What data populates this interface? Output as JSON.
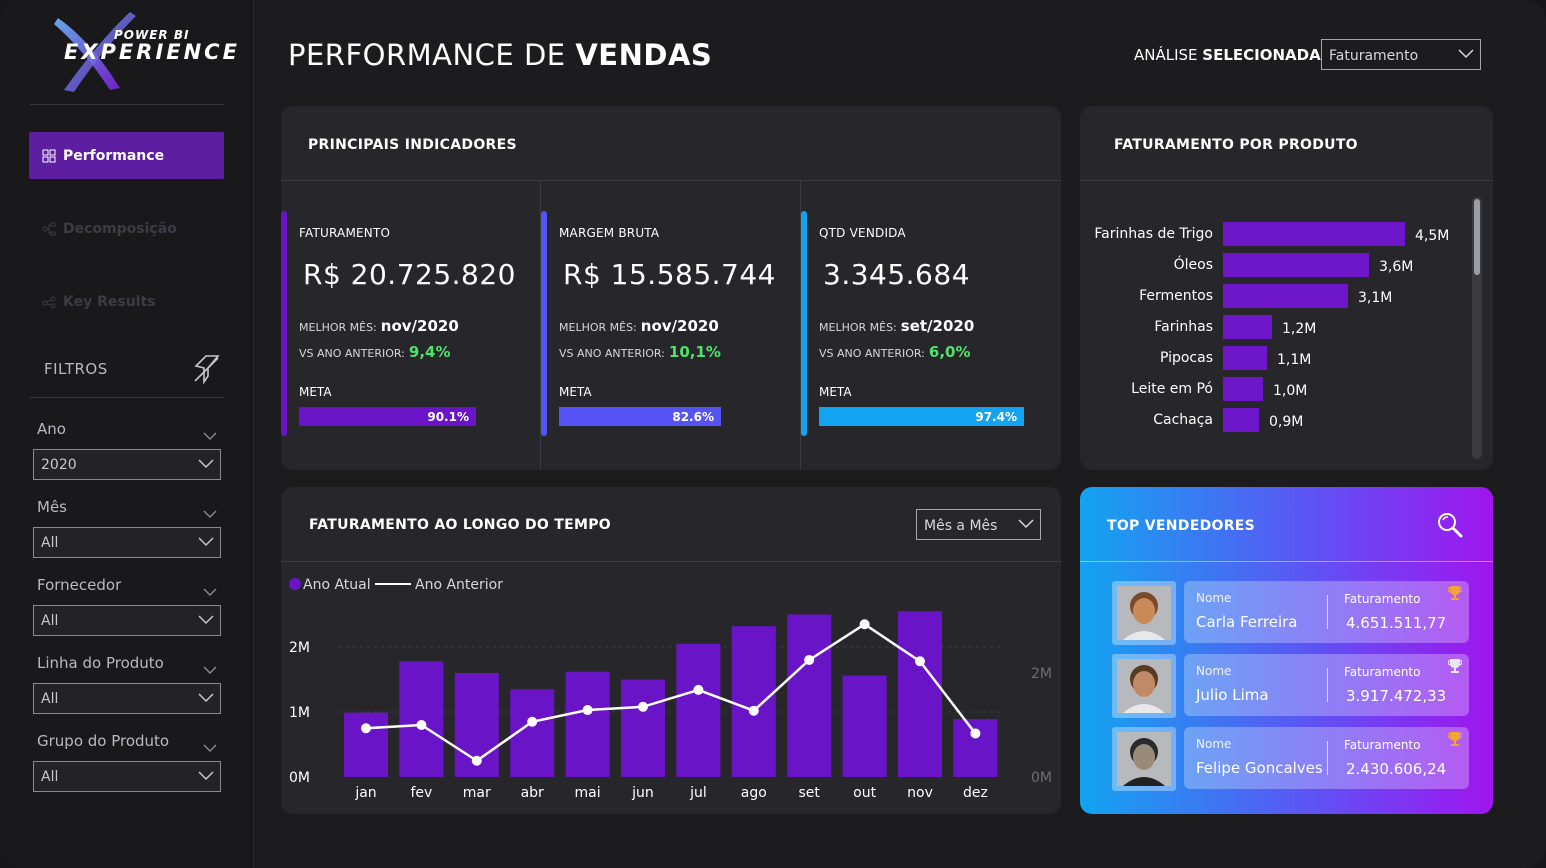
{
  "app": {
    "logo_top": "POWER BI",
    "logo_bottom": "EXPERIENCE",
    "title_regular": "PERFORMANCE DE ",
    "title_bold": "VENDAS"
  },
  "sidebar": {
    "nav": [
      {
        "label": "Performance",
        "active": true
      },
      {
        "label": "Decomposição",
        "active": false
      },
      {
        "label": "Key Results",
        "active": false
      }
    ],
    "filters_title": "FILTROS",
    "filters": [
      {
        "label": "Ano",
        "value": "2020"
      },
      {
        "label": "Mês",
        "value": "All"
      },
      {
        "label": "Fornecedor",
        "value": "All"
      },
      {
        "label": "Linha do Produto",
        "value": "All"
      },
      {
        "label": "Grupo do Produto",
        "value": "All"
      }
    ]
  },
  "analysis": {
    "label_regular": "ANÁLISE ",
    "label_bold": "SELECIONADA:",
    "value": "Faturamento"
  },
  "kpis": {
    "title": "PRINCIPAIS INDICADORES",
    "best_label": "MELHOR MÊS:",
    "vs_label": "VS ANO ANTERIOR:",
    "meta_label": "META",
    "items": [
      {
        "label": "FATURAMENTO",
        "value": "R$ 20.725.820",
        "best": "nov/2020",
        "vs": "9,4%",
        "meta": "90.1%",
        "meta_fraction": 0.901,
        "color": "#6a14c7"
      },
      {
        "label": "MARGEM BRUTA",
        "value": "R$ 15.585.744",
        "best": "nov/2020",
        "vs": "10,1%",
        "meta": "82.6%",
        "meta_fraction": 0.826,
        "color": "#5653f5"
      },
      {
        "label": "QTD VENDIDA",
        "value": "3.345.684",
        "best": "set/2020",
        "vs": "6,0%",
        "meta": "97.4%",
        "meta_fraction": 0.974,
        "color": "#12a4f0"
      }
    ]
  },
  "products": {
    "title": "FATURAMENTO POR PRODUTO",
    "items": [
      {
        "name": "Farinhas de Trigo",
        "label": "4,5M",
        "value": 4.5
      },
      {
        "name": "Óleos",
        "label": "3,6M",
        "value": 3.6
      },
      {
        "name": "Fermentos",
        "label": "3,1M",
        "value": 3.1
      },
      {
        "name": "Farinhas",
        "label": "1,2M",
        "value": 1.2
      },
      {
        "name": "Pipocas",
        "label": "1,1M",
        "value": 1.1
      },
      {
        "name": "Leite em Pó",
        "label": "1,0M",
        "value": 1.0
      },
      {
        "name": "Cachaça",
        "label": "0,9M",
        "value": 0.9
      }
    ]
  },
  "timeline": {
    "title": "FATURAMENTO AO LONGO DO TEMPO",
    "granularity": "Mês a Mês"
  },
  "chart_data": {
    "type": "bar",
    "categories": [
      "jan",
      "fev",
      "mar",
      "abr",
      "mai",
      "jun",
      "jul",
      "ago",
      "set",
      "out",
      "nov",
      "dez"
    ],
    "series": [
      {
        "name": "Ano Atual",
        "type": "bar",
        "color": "#6a14c7",
        "values": [
          0.99,
          1.78,
          1.6,
          1.35,
          1.62,
          1.5,
          2.05,
          2.32,
          2.5,
          1.56,
          2.55,
          0.89
        ]
      },
      {
        "name": "Ano Anterior",
        "type": "line",
        "color": "#ffffff",
        "values": [
          0.75,
          0.8,
          0.25,
          0.85,
          1.03,
          1.08,
          1.34,
          1.02,
          1.8,
          2.35,
          1.78,
          0.67
        ]
      }
    ],
    "left_ticks": [
      "0M",
      "1M",
      "2M"
    ],
    "right_ticks": [
      "0M",
      "2M"
    ],
    "ylim": [
      0,
      2.5
    ],
    "legend": "top-left"
  },
  "sellers": {
    "title": "TOP VENDEDORES",
    "name_label": "Nome",
    "value_label": "Faturamento",
    "items": [
      {
        "name": "Carla Ferreira",
        "value": "4.651.511,77",
        "trophy": "#f2a33a"
      },
      {
        "name": "Julio Lima",
        "value": "3.917.472,33",
        "trophy": "#e8e8f0"
      },
      {
        "name": "Felipe Goncalves",
        "value": "2.430.606,24",
        "trophy": "#f2a33a"
      }
    ]
  }
}
